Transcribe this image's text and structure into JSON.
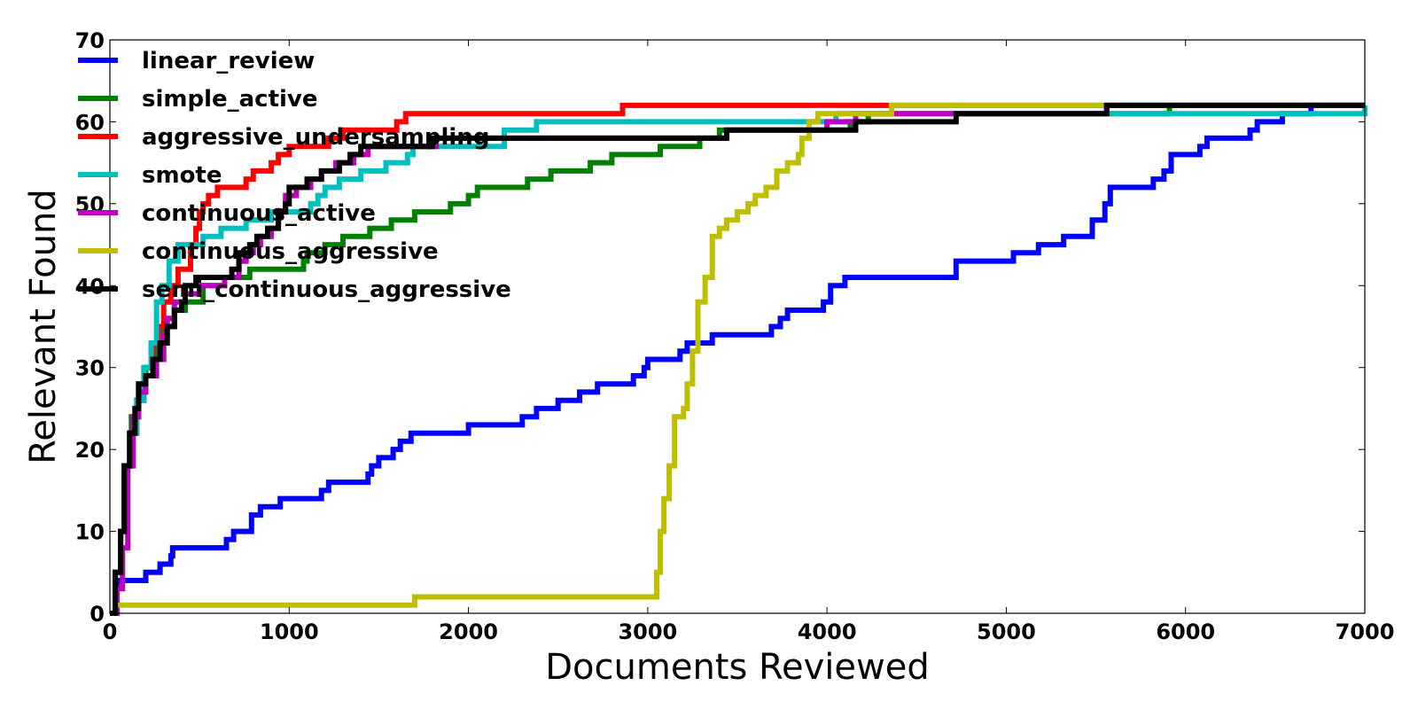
{
  "chart_data": {
    "type": "line",
    "title": "",
    "xlabel": "Documents Reviewed",
    "ylabel": "Relevant Found",
    "xlim": [
      0,
      7000
    ],
    "ylim": [
      0,
      70
    ],
    "xticks": [
      0,
      1000,
      2000,
      3000,
      4000,
      5000,
      6000,
      7000
    ],
    "yticks": [
      0,
      10,
      20,
      30,
      40,
      50,
      60,
      70
    ],
    "grid": false,
    "legend_position": "top-left",
    "series": [
      {
        "name": "linear_review",
        "color": "#0000ff",
        "points": [
          [
            0,
            0
          ],
          [
            40,
            4
          ],
          [
            200,
            5
          ],
          [
            280,
            6
          ],
          [
            340,
            7
          ],
          [
            350,
            8
          ],
          [
            650,
            9
          ],
          [
            690,
            10
          ],
          [
            790,
            12
          ],
          [
            840,
            13
          ],
          [
            950,
            14
          ],
          [
            1180,
            15
          ],
          [
            1220,
            16
          ],
          [
            1440,
            17
          ],
          [
            1460,
            18
          ],
          [
            1500,
            19
          ],
          [
            1580,
            20
          ],
          [
            1620,
            21
          ],
          [
            1680,
            22
          ],
          [
            2000,
            23
          ],
          [
            2300,
            24
          ],
          [
            2380,
            25
          ],
          [
            2500,
            26
          ],
          [
            2620,
            27
          ],
          [
            2720,
            28
          ],
          [
            2920,
            29
          ],
          [
            2980,
            30
          ],
          [
            3000,
            31
          ],
          [
            3180,
            32
          ],
          [
            3220,
            33
          ],
          [
            3360,
            34
          ],
          [
            3690,
            35
          ],
          [
            3740,
            36
          ],
          [
            3780,
            37
          ],
          [
            3980,
            38
          ],
          [
            4020,
            40
          ],
          [
            4100,
            41
          ],
          [
            4720,
            43
          ],
          [
            5040,
            44
          ],
          [
            5180,
            45
          ],
          [
            5320,
            46
          ],
          [
            5480,
            48
          ],
          [
            5550,
            50
          ],
          [
            5580,
            52
          ],
          [
            5820,
            53
          ],
          [
            5880,
            54
          ],
          [
            5920,
            56
          ],
          [
            6080,
            57
          ],
          [
            6120,
            58
          ],
          [
            6360,
            59
          ],
          [
            6400,
            60
          ],
          [
            6540,
            61
          ],
          [
            6700,
            62
          ],
          [
            7000,
            62
          ]
        ]
      },
      {
        "name": "simple_active",
        "color": "#008000",
        "points": [
          [
            0,
            0
          ],
          [
            30,
            5
          ],
          [
            60,
            10
          ],
          [
            80,
            18
          ],
          [
            120,
            24
          ],
          [
            160,
            28
          ],
          [
            200,
            30
          ],
          [
            250,
            33
          ],
          [
            300,
            35
          ],
          [
            360,
            37
          ],
          [
            420,
            38
          ],
          [
            520,
            40
          ],
          [
            640,
            41
          ],
          [
            780,
            42
          ],
          [
            1080,
            43
          ],
          [
            1100,
            44
          ],
          [
            1200,
            45
          ],
          [
            1300,
            46
          ],
          [
            1450,
            47
          ],
          [
            1570,
            48
          ],
          [
            1700,
            49
          ],
          [
            1900,
            50
          ],
          [
            2000,
            51
          ],
          [
            2050,
            52
          ],
          [
            2330,
            53
          ],
          [
            2460,
            54
          ],
          [
            2680,
            55
          ],
          [
            2800,
            56
          ],
          [
            3070,
            57
          ],
          [
            3290,
            58
          ],
          [
            3400,
            59
          ],
          [
            3500,
            59
          ],
          [
            3700,
            59
          ],
          [
            3800,
            59
          ],
          [
            4130,
            60
          ],
          [
            4230,
            61
          ],
          [
            5000,
            61
          ],
          [
            5910,
            62
          ],
          [
            7000,
            62
          ]
        ]
      },
      {
        "name": "aggressive_undersampling",
        "color": "#ff0000",
        "points": [
          [
            0,
            0
          ],
          [
            30,
            5
          ],
          [
            60,
            10
          ],
          [
            80,
            18
          ],
          [
            110,
            22
          ],
          [
            150,
            26
          ],
          [
            190,
            30
          ],
          [
            240,
            33
          ],
          [
            270,
            35
          ],
          [
            300,
            38
          ],
          [
            340,
            40
          ],
          [
            380,
            42
          ],
          [
            450,
            45
          ],
          [
            480,
            47
          ],
          [
            500,
            49
          ],
          [
            520,
            50
          ],
          [
            550,
            51
          ],
          [
            600,
            52
          ],
          [
            760,
            53
          ],
          [
            800,
            54
          ],
          [
            900,
            55
          ],
          [
            940,
            56
          ],
          [
            1000,
            57
          ],
          [
            1220,
            58
          ],
          [
            1300,
            59
          ],
          [
            1600,
            60
          ],
          [
            1650,
            61
          ],
          [
            2860,
            62
          ],
          [
            7000,
            62
          ]
        ]
      },
      {
        "name": "smote",
        "color": "#00bfbf",
        "points": [
          [
            0,
            0
          ],
          [
            30,
            5
          ],
          [
            60,
            10
          ],
          [
            80,
            18
          ],
          [
            110,
            22
          ],
          [
            150,
            26
          ],
          [
            190,
            30
          ],
          [
            230,
            33
          ],
          [
            260,
            38
          ],
          [
            290,
            40
          ],
          [
            330,
            43
          ],
          [
            380,
            45
          ],
          [
            520,
            46
          ],
          [
            620,
            47
          ],
          [
            760,
            48
          ],
          [
            900,
            49
          ],
          [
            1020,
            49
          ],
          [
            1100,
            49
          ],
          [
            1120,
            50
          ],
          [
            1160,
            51
          ],
          [
            1200,
            52
          ],
          [
            1280,
            53
          ],
          [
            1400,
            54
          ],
          [
            1540,
            55
          ],
          [
            1660,
            56
          ],
          [
            1690,
            57
          ],
          [
            2200,
            59
          ],
          [
            2380,
            60
          ],
          [
            4050,
            61
          ],
          [
            7000,
            62
          ]
        ]
      },
      {
        "name": "continuous_active",
        "color": "#bf00bf",
        "points": [
          [
            0,
            0
          ],
          [
            40,
            3
          ],
          [
            70,
            8
          ],
          [
            100,
            18
          ],
          [
            130,
            24
          ],
          [
            160,
            27
          ],
          [
            200,
            29
          ],
          [
            260,
            31
          ],
          [
            300,
            34
          ],
          [
            320,
            36
          ],
          [
            360,
            38
          ],
          [
            420,
            39
          ],
          [
            500,
            40
          ],
          [
            640,
            41
          ],
          [
            720,
            43
          ],
          [
            760,
            44
          ],
          [
            800,
            45
          ],
          [
            840,
            46
          ],
          [
            900,
            47
          ],
          [
            940,
            49
          ],
          [
            980,
            51
          ],
          [
            1040,
            52
          ],
          [
            1120,
            53
          ],
          [
            1180,
            54
          ],
          [
            1260,
            55
          ],
          [
            1360,
            56
          ],
          [
            1440,
            57
          ],
          [
            1820,
            58
          ],
          [
            3440,
            59
          ],
          [
            4000,
            60
          ],
          [
            4160,
            61
          ],
          [
            5560,
            62
          ],
          [
            7000,
            62
          ]
        ]
      },
      {
        "name": "continuous_aggressive",
        "color": "#bfbf00",
        "points": [
          [
            0,
            0
          ],
          [
            30,
            1
          ],
          [
            1700,
            2
          ],
          [
            3030,
            2
          ],
          [
            3050,
            5
          ],
          [
            3070,
            10
          ],
          [
            3090,
            14
          ],
          [
            3120,
            18
          ],
          [
            3150,
            24
          ],
          [
            3200,
            25
          ],
          [
            3220,
            28
          ],
          [
            3250,
            32
          ],
          [
            3280,
            38
          ],
          [
            3320,
            41
          ],
          [
            3360,
            46
          ],
          [
            3400,
            47
          ],
          [
            3440,
            48
          ],
          [
            3500,
            49
          ],
          [
            3560,
            50
          ],
          [
            3600,
            51
          ],
          [
            3660,
            52
          ],
          [
            3720,
            54
          ],
          [
            3780,
            55
          ],
          [
            3840,
            56
          ],
          [
            3860,
            58
          ],
          [
            3900,
            60
          ],
          [
            3950,
            61
          ],
          [
            4360,
            62
          ],
          [
            7000,
            62
          ]
        ]
      },
      {
        "name": "semi_continuous_aggressive",
        "color": "#000000",
        "points": [
          [
            0,
            0
          ],
          [
            30,
            5
          ],
          [
            60,
            10
          ],
          [
            80,
            18
          ],
          [
            110,
            22
          ],
          [
            140,
            25
          ],
          [
            160,
            28
          ],
          [
            200,
            29
          ],
          [
            240,
            31
          ],
          [
            280,
            33
          ],
          [
            320,
            35
          ],
          [
            360,
            37
          ],
          [
            400,
            38
          ],
          [
            420,
            40
          ],
          [
            480,
            41
          ],
          [
            680,
            42
          ],
          [
            720,
            44
          ],
          [
            780,
            45
          ],
          [
            820,
            46
          ],
          [
            880,
            47
          ],
          [
            940,
            49
          ],
          [
            980,
            50
          ],
          [
            1000,
            52
          ],
          [
            1100,
            53
          ],
          [
            1180,
            54
          ],
          [
            1280,
            55
          ],
          [
            1340,
            56
          ],
          [
            1400,
            57
          ],
          [
            1800,
            58
          ],
          [
            3440,
            59
          ],
          [
            4160,
            60
          ],
          [
            4720,
            61
          ],
          [
            5560,
            62
          ],
          [
            7000,
            62
          ]
        ]
      }
    ]
  }
}
